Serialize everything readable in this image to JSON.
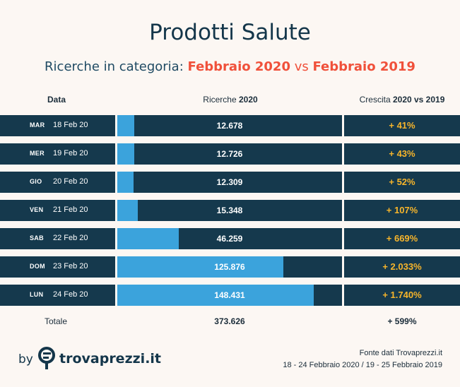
{
  "title": "Prodotti Salute",
  "subtitle": {
    "prefix": "Ricerche in categoria:",
    "period_a": "Febbraio 2020",
    "vs": "vs",
    "period_b": "Febbraio 2019"
  },
  "headers": {
    "date": "Data",
    "search_prefix": "Ricerche",
    "search_year": "2020",
    "growth_prefix": "Crescita",
    "growth_years": "2020 vs 2019"
  },
  "chart_data": {
    "type": "bar",
    "orientation": "horizontal",
    "xlim": [
      0,
      170000
    ],
    "rows": [
      {
        "day": "MAR",
        "date": "18 Feb 20",
        "value": 12678,
        "value_label": "12.678",
        "growth": "+ 41%"
      },
      {
        "day": "MER",
        "date": "19 Feb 20",
        "value": 12726,
        "value_label": "12.726",
        "growth": "+ 43%"
      },
      {
        "day": "GIO",
        "date": "20 Feb 20",
        "value": 12309,
        "value_label": "12.309",
        "growth": "+ 52%"
      },
      {
        "day": "VEN",
        "date": "21 Feb 20",
        "value": 15348,
        "value_label": "15.348",
        "growth": "+ 107%"
      },
      {
        "day": "SAB",
        "date": "22 Feb 20",
        "value": 46259,
        "value_label": "46.259",
        "growth": "+ 669%"
      },
      {
        "day": "DOM",
        "date": "23 Feb 20",
        "value": 125876,
        "value_label": "125.876",
        "growth": "+ 2.033%"
      },
      {
        "day": "LUN",
        "date": "24 Feb 20",
        "value": 148431,
        "value_label": "148.431",
        "growth": "+ 1.740%"
      }
    ],
    "colors": {
      "bar": "#3ba3dc",
      "row_bg": "#15394d",
      "growth": "#f7b52b"
    }
  },
  "total": {
    "label": "Totale",
    "value": "373.626",
    "growth": "+ 599%"
  },
  "footer": {
    "by": "by",
    "brand": "trovaprezzi.it",
    "source_line1": "Fonte dati Trovaprezzi.it",
    "source_line2": "18 - 24 Febbraio 2020 / 19 - 25 Febbraio 2019"
  }
}
